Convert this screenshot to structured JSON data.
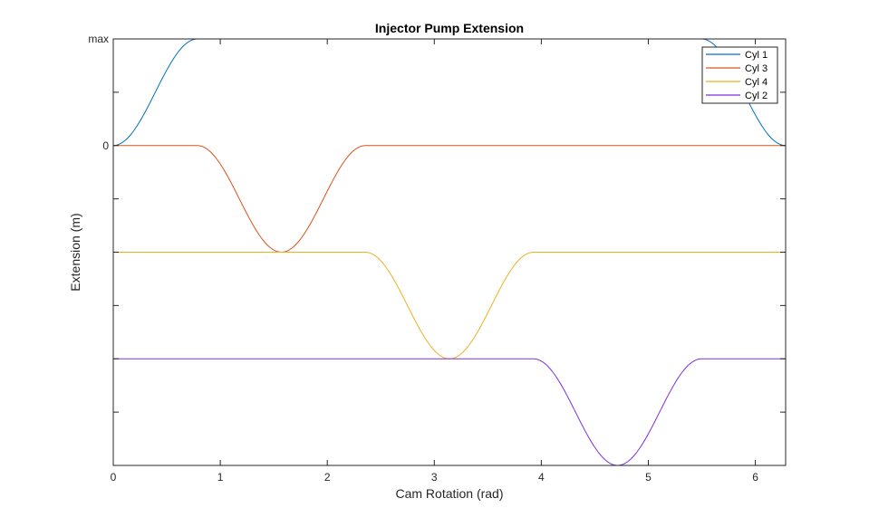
{
  "chart_data": {
    "type": "line",
    "title": "Injector Pump Extension",
    "xlabel": "Cam Rotation (rad)",
    "ylabel": "Extension (m)",
    "xlim": [
      0,
      6.2832
    ],
    "ylim": [
      -3,
      1
    ],
    "x_ticks": [
      0,
      1,
      2,
      3,
      4,
      5,
      6
    ],
    "x_tick_labels": [
      "0",
      "1",
      "2",
      "3",
      "4",
      "5",
      "6"
    ],
    "y_ticks": [
      -3,
      -2.5,
      -2,
      -1.5,
      -1,
      -0.5,
      0,
      0.5,
      1
    ],
    "y_tick_labels": [
      "",
      "",
      "",
      "",
      "",
      "",
      "0",
      "",
      "max"
    ],
    "grid": false,
    "box": true,
    "legend_position": "top-right",
    "series": [
      {
        "name": "Cyl 1",
        "color": "#0072BD",
        "segments": [
          {
            "x0": 0.0,
            "x1": 0.7854,
            "y0": 0,
            "y1": 1
          },
          {
            "x0": 0.7854,
            "x1": 5.4978,
            "y0": 1,
            "y1": 1
          },
          {
            "x0": 5.4978,
            "x1": 6.2832,
            "y0": 1,
            "y1": 0
          }
        ]
      },
      {
        "name": "Cyl 3",
        "color": "#D95319",
        "segments": [
          {
            "x0": 0.0,
            "x1": 0.7854,
            "y0": 0,
            "y1": 0
          },
          {
            "x0": 0.7854,
            "x1": 1.5708,
            "y0": 0,
            "y1": -1
          },
          {
            "x0": 1.5708,
            "x1": 2.3562,
            "y0": -1,
            "y1": 0
          },
          {
            "x0": 2.3562,
            "x1": 6.2832,
            "y0": 0,
            "y1": 0
          }
        ]
      },
      {
        "name": "Cyl 4",
        "color": "#EDB120",
        "segments": [
          {
            "x0": 0.0,
            "x1": 2.3562,
            "y0": -1,
            "y1": -1
          },
          {
            "x0": 2.3562,
            "x1": 3.1416,
            "y0": -1,
            "y1": -2
          },
          {
            "x0": 3.1416,
            "x1": 3.927,
            "y0": -2,
            "y1": -1
          },
          {
            "x0": 3.927,
            "x1": 6.2832,
            "y0": -1,
            "y1": -1
          }
        ]
      },
      {
        "name": "Cyl 2",
        "color": "#7E2FD9",
        "segments": [
          {
            "x0": 0.0,
            "x1": 3.927,
            "y0": -2,
            "y1": -2
          },
          {
            "x0": 3.927,
            "x1": 4.7124,
            "y0": -2,
            "y1": -3
          },
          {
            "x0": 4.7124,
            "x1": 5.4978,
            "y0": -3,
            "y1": -2
          },
          {
            "x0": 5.4978,
            "x1": 6.2832,
            "y0": -2,
            "y1": -2
          }
        ]
      }
    ]
  }
}
